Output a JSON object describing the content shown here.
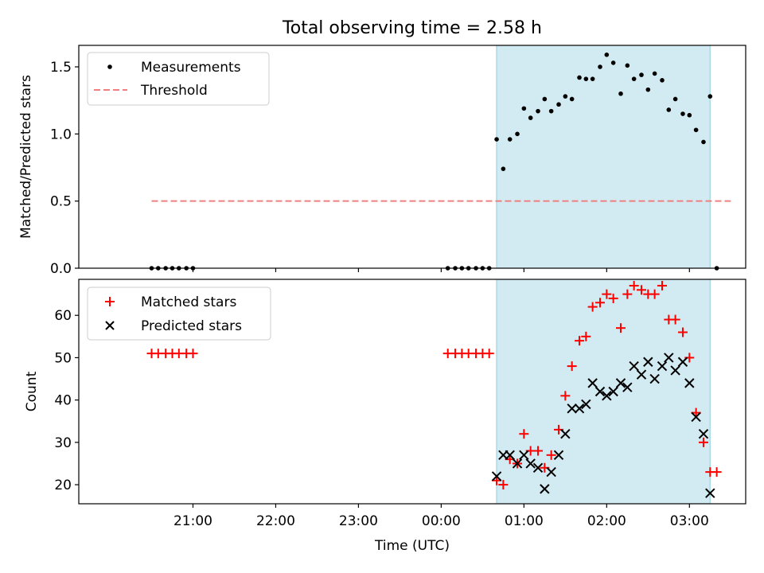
{
  "chart_data": [
    {
      "type": "scatter",
      "title": "Total observing time = 2.58 h",
      "ylabel": "Matched/Predicted stars",
      "xlabel": "",
      "ylim": [
        0,
        1.66
      ],
      "yticks": [
        "0.0",
        "0.5",
        "1.0",
        "1.5"
      ],
      "yticks_values": [
        0,
        0.5,
        1.0,
        1.5
      ],
      "legend": {
        "position": "top-left",
        "entries": [
          "Measurements",
          "Threshold"
        ]
      },
      "threshold": {
        "name": "Threshold",
        "value": 0.5,
        "x_start": 20.5,
        "x_end": 27.5,
        "color": "#f08080"
      },
      "observing_window": {
        "start": 24.67,
        "end": 27.25,
        "color": "#add8e6"
      },
      "series": [
        {
          "name": "Measurements",
          "color": "#000000",
          "x": [
            20.5,
            20.58,
            20.67,
            20.75,
            20.83,
            20.92,
            21.0,
            24.08,
            24.17,
            24.25,
            24.33,
            24.42,
            24.5,
            24.58,
            24.67,
            24.75,
            24.83,
            24.92,
            25.0,
            25.08,
            25.17,
            25.25,
            25.33,
            25.42,
            25.5,
            25.58,
            25.67,
            25.75,
            25.83,
            25.92,
            26.0,
            26.08,
            26.17,
            26.25,
            26.33,
            26.42,
            26.5,
            26.58,
            26.67,
            26.75,
            26.83,
            26.92,
            27.0,
            27.08,
            27.17,
            27.25,
            27.33
          ],
          "y": [
            0,
            0,
            0,
            0,
            0,
            0,
            0,
            0,
            0,
            0,
            0,
            0,
            0,
            0,
            0.96,
            0.74,
            0.96,
            1.0,
            1.19,
            1.12,
            1.17,
            1.26,
            1.17,
            1.22,
            1.28,
            1.26,
            1.42,
            1.41,
            1.41,
            1.5,
            1.59,
            1.53,
            1.3,
            1.51,
            1.41,
            1.44,
            1.33,
            1.45,
            1.4,
            1.18,
            1.26,
            1.15,
            1.14,
            1.03,
            0.94,
            1.28,
            0
          ]
        }
      ]
    },
    {
      "type": "scatter",
      "xlabel": "Time (UTC)",
      "ylabel": "Count",
      "ylim": [
        15.5,
        68.5
      ],
      "yticks": [
        "20",
        "30",
        "40",
        "50",
        "60"
      ],
      "yticks_values": [
        20,
        30,
        40,
        50,
        60
      ],
      "xticks": [
        "21:00",
        "22:00",
        "23:00",
        "00:00",
        "01:00",
        "02:00",
        "03:00"
      ],
      "xticks_values": [
        21,
        22,
        23,
        24,
        25,
        26,
        27
      ],
      "xlim": [
        19.62,
        27.68
      ],
      "legend": {
        "position": "top-left",
        "entries": [
          "Matched stars",
          "Predicted stars"
        ]
      },
      "observing_window": {
        "start": 24.67,
        "end": 27.25,
        "color": "#add8e6"
      },
      "series": [
        {
          "name": "Matched stars",
          "marker": "plus",
          "color": "#ff0000",
          "x": [
            20.5,
            20.58,
            20.67,
            20.75,
            20.83,
            20.92,
            21.0,
            24.08,
            24.17,
            24.25,
            24.33,
            24.42,
            24.5,
            24.58,
            24.67,
            24.75,
            24.83,
            24.92,
            25.0,
            25.08,
            25.17,
            25.25,
            25.33,
            25.42,
            25.5,
            25.58,
            25.67,
            25.75,
            25.83,
            25.92,
            26.0,
            26.08,
            26.17,
            26.25,
            26.33,
            26.42,
            26.5,
            26.58,
            26.67,
            26.75,
            26.83,
            26.92,
            27.0,
            27.08,
            27.17,
            27.25,
            27.33
          ],
          "y": [
            51,
            51,
            51,
            51,
            51,
            51,
            51,
            51,
            51,
            51,
            51,
            51,
            51,
            51,
            21,
            20,
            26,
            25,
            32,
            28,
            28,
            24,
            27,
            33,
            41,
            48,
            54,
            55,
            62,
            63,
            65,
            64,
            57,
            65,
            67,
            66,
            65,
            65,
            67,
            59,
            59,
            56,
            50,
            37,
            30,
            23,
            23
          ]
        },
        {
          "name": "Predicted stars",
          "marker": "x",
          "color": "#000000",
          "x": [
            24.67,
            24.75,
            24.83,
            24.92,
            25.0,
            25.08,
            25.17,
            25.25,
            25.33,
            25.42,
            25.5,
            25.58,
            25.67,
            25.75,
            25.83,
            25.92,
            26.0,
            26.08,
            26.17,
            26.25,
            26.33,
            26.42,
            26.5,
            26.58,
            26.67,
            26.75,
            26.83,
            26.92,
            27.0,
            27.08,
            27.17,
            27.25
          ],
          "y": [
            22,
            27,
            27,
            25,
            27,
            25,
            24,
            19,
            23,
            27,
            32,
            38,
            38,
            39,
            44,
            42,
            41,
            42,
            44,
            43,
            48,
            46,
            49,
            45,
            48,
            50,
            47,
            49,
            44,
            36,
            32,
            18
          ]
        }
      ]
    }
  ]
}
